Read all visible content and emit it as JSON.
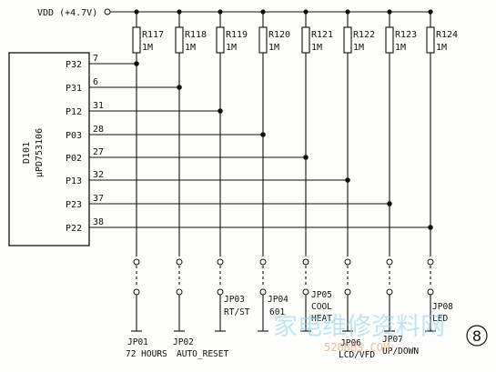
{
  "supply_label": "VDD (+4.7V)",
  "chip": {
    "ref": "D101",
    "part": "μPD753106"
  },
  "resistors": [
    {
      "ref": "R117",
      "value": "1M"
    },
    {
      "ref": "R118",
      "value": "1M"
    },
    {
      "ref": "R119",
      "value": "1M"
    },
    {
      "ref": "R120",
      "value": "1M"
    },
    {
      "ref": "R121",
      "value": "1M"
    },
    {
      "ref": "R122",
      "value": "1M"
    },
    {
      "ref": "R123",
      "value": "1M"
    },
    {
      "ref": "R124",
      "value": "1M"
    }
  ],
  "pins": [
    {
      "port": "P32",
      "number": "7"
    },
    {
      "port": "P31",
      "number": "6"
    },
    {
      "port": "P12",
      "number": "31"
    },
    {
      "port": "P03",
      "number": "28"
    },
    {
      "port": "P02",
      "number": "27"
    },
    {
      "port": "P13",
      "number": "32"
    },
    {
      "port": "P23",
      "number": "37"
    },
    {
      "port": "P22",
      "number": "38"
    }
  ],
  "jumpers": [
    {
      "ref": "JP01",
      "function": "72 HOURS"
    },
    {
      "ref": "JP02",
      "function": "AUTO_RESET"
    },
    {
      "ref": "JP03",
      "function": "RT/ST"
    },
    {
      "ref": "JP04",
      "function": "601"
    },
    {
      "ref": "JP05",
      "function": "COOL",
      "function2": "HEAT"
    },
    {
      "ref": "JP06",
      "function": "LCD/VFD"
    },
    {
      "ref": "JP07",
      "function": "UP/DOWN"
    },
    {
      "ref": "JP08",
      "function": "LED"
    }
  ],
  "figure_number": "8",
  "watermark": {
    "text": "家电维修资料网",
    "url": "520BBS.COM"
  }
}
